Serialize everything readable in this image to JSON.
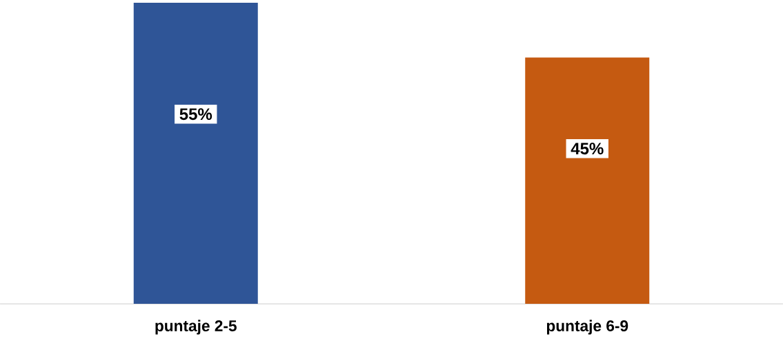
{
  "chart_data": {
    "type": "bar",
    "categories": [
      "puntaje 2-5",
      "puntaje 6-9"
    ],
    "values": [
      55,
      45
    ],
    "colors": [
      "#2f5597",
      "#c55a11"
    ],
    "value_labels": [
      "55%",
      "45%"
    ],
    "ylim": [
      0,
      55
    ]
  }
}
